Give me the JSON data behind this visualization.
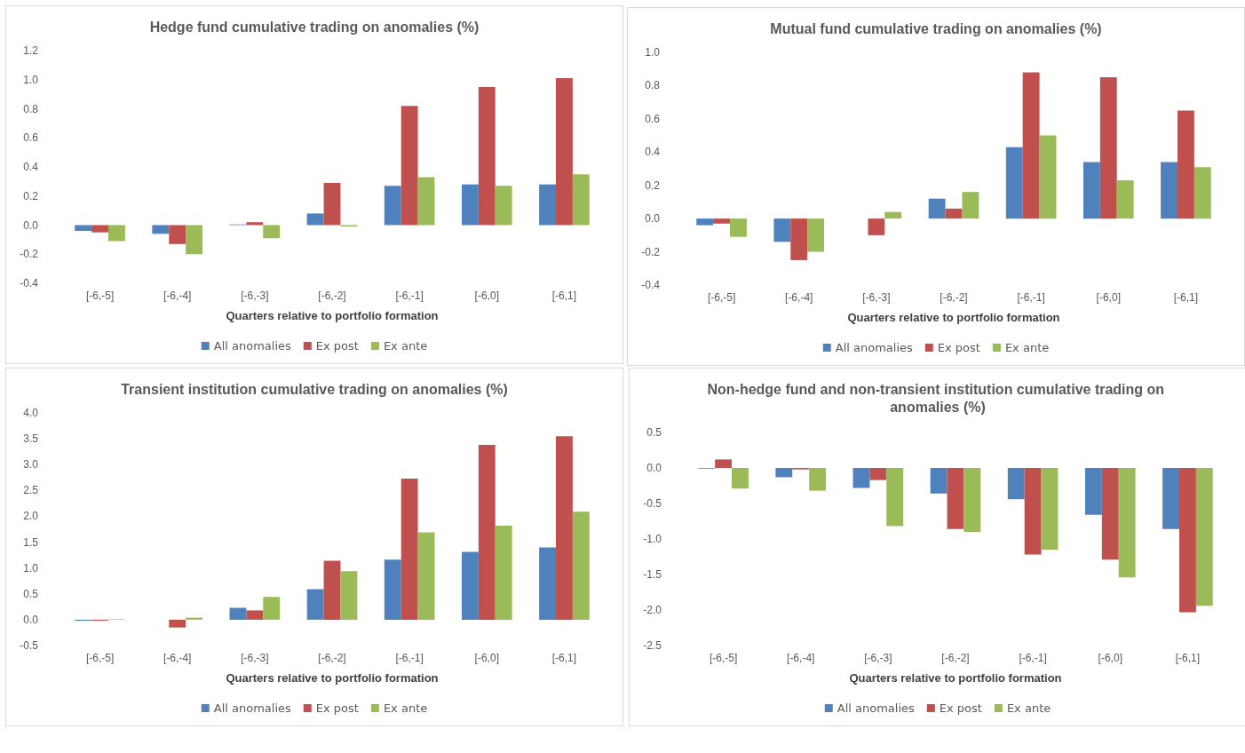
{
  "chart_data": [
    {
      "type": "bar",
      "title": "Hedge fund cumulative trading on anomalies (%)",
      "xlabel": "Quarters relative to portfolio formation",
      "categories": [
        "[-6,-5]",
        "[-6,-4]",
        "[-6,-3]",
        "[-6,-2]",
        "[-6,-1]",
        "[-6,0]",
        "[-6,1]"
      ],
      "series": [
        {
          "name": "All anomalies",
          "color": "#4f81bd",
          "values": [
            -0.04,
            -0.06,
            0.005,
            0.08,
            0.27,
            0.28,
            0.28
          ]
        },
        {
          "name": "Ex post",
          "color": "#c0504d",
          "values": [
            -0.05,
            -0.13,
            0.02,
            0.29,
            0.82,
            0.95,
            1.01
          ]
        },
        {
          "name": "Ex ante",
          "color": "#9bbb59",
          "values": [
            -0.11,
            -0.2,
            -0.09,
            -0.01,
            0.33,
            0.27,
            0.35
          ]
        }
      ],
      "ylim": [
        -0.4,
        1.2
      ],
      "yticks": [
        {
          "value": -0.4,
          "label": "-0.4"
        },
        {
          "value": -0.2,
          "label": "-0.2"
        },
        {
          "value": 0,
          "label": "0.0"
        },
        {
          "value": 0.2,
          "label": "0.2"
        },
        {
          "value": 0.4,
          "label": "0.4"
        },
        {
          "value": 0.6,
          "label": "0.6"
        },
        {
          "value": 0.8,
          "label": "0.8"
        },
        {
          "value": 1,
          "label": "1.0"
        },
        {
          "value": 1.2,
          "label": "1.2"
        }
      ],
      "legend": "bottom"
    },
    {
      "type": "bar",
      "title": "Mutual fund cumulative trading on anomalies (%)",
      "xlabel": "Quarters relative to portfolio formation",
      "categories": [
        "[-6,-5]",
        "[-6,-4]",
        "[-6,-3]",
        "[-6,-2]",
        "[-6,-1]",
        "[-6,0]",
        "[-6,1]"
      ],
      "series": [
        {
          "name": "All anomalies",
          "color": "#4f81bd",
          "values": [
            -0.04,
            -0.14,
            0,
            0.12,
            0.43,
            0.34,
            0.34
          ]
        },
        {
          "name": "Ex post",
          "color": "#c0504d",
          "values": [
            -0.03,
            -0.25,
            -0.1,
            0.06,
            0.88,
            0.85,
            0.65
          ]
        },
        {
          "name": "Ex ante",
          "color": "#9bbb59",
          "values": [
            -0.11,
            -0.2,
            0.04,
            0.16,
            0.5,
            0.23,
            0.31
          ]
        }
      ],
      "ylim": [
        -0.4,
        1.0
      ],
      "yticks": [
        {
          "value": -0.4,
          "label": "-0.4"
        },
        {
          "value": -0.2,
          "label": "-0.2"
        },
        {
          "value": 0,
          "label": "0.0"
        },
        {
          "value": 0.2,
          "label": "0.2"
        },
        {
          "value": 0.4,
          "label": "0.4"
        },
        {
          "value": 0.6,
          "label": "0.6"
        },
        {
          "value": 0.8,
          "label": "0.8"
        },
        {
          "value": 1,
          "label": "1.0"
        }
      ],
      "legend": "bottom"
    },
    {
      "type": "bar",
      "title": "Transient institution cumulative trading on anomalies (%)",
      "xlabel": "Quarters relative to portfolio formation",
      "categories": [
        "[-6,-5]",
        "[-6,-4]",
        "[-6,-3]",
        "[-6,-2]",
        "[-6,-1]",
        "[-6,0]",
        "[-6,1]"
      ],
      "series": [
        {
          "name": "All anomalies",
          "color": "#4f81bd",
          "values": [
            -0.02,
            null,
            0.23,
            0.59,
            1.16,
            1.31,
            1.4
          ]
        },
        {
          "name": "Ex post",
          "color": "#c0504d",
          "values": [
            -0.02,
            -0.15,
            0.18,
            1.14,
            2.73,
            3.38,
            3.55
          ]
        },
        {
          "name": "Ex ante",
          "color": "#9bbb59",
          "values": [
            0.01,
            0.04,
            0.44,
            0.94,
            1.69,
            1.82,
            2.09
          ]
        }
      ],
      "ylim": [
        -0.5,
        4.0
      ],
      "yticks": [
        {
          "value": -0.5,
          "label": "-0.5"
        },
        {
          "value": 0,
          "label": "0.0"
        },
        {
          "value": 0.5,
          "label": "0.5"
        },
        {
          "value": 1,
          "label": "1.0"
        },
        {
          "value": 1.5,
          "label": "1.5"
        },
        {
          "value": 2,
          "label": "2.0"
        },
        {
          "value": 2.5,
          "label": "2.5"
        },
        {
          "value": 3,
          "label": "3.0"
        },
        {
          "value": 3.5,
          "label": "3.5"
        },
        {
          "value": 4,
          "label": "4.0"
        }
      ],
      "legend": "bottom"
    },
    {
      "type": "bar",
      "title": "Non-hedge fund and non-transient institution cumulative trading on anomalies (%)",
      "xlabel": "Quarters relative to portfolio formation",
      "categories": [
        "[-6,-5]",
        "[-6,-4]",
        "[-6,-3]",
        "[-6,-2]",
        "[-6,-1]",
        "[-6,0]",
        "[-6,1]"
      ],
      "series": [
        {
          "name": "All anomalies",
          "color": "#4f81bd",
          "values": [
            -0.01,
            -0.13,
            -0.28,
            -0.36,
            -0.44,
            -0.66,
            -0.86
          ]
        },
        {
          "name": "Ex post",
          "color": "#c0504d",
          "values": [
            0.12,
            -0.02,
            -0.17,
            -0.86,
            -1.22,
            -1.29,
            -2.03
          ]
        },
        {
          "name": "Ex ante",
          "color": "#9bbb59",
          "values": [
            -0.29,
            -0.32,
            -0.82,
            -0.9,
            -1.15,
            -1.54,
            -1.94
          ]
        }
      ],
      "ylim": [
        -2.5,
        0.5
      ],
      "yticks": [
        {
          "value": -2.5,
          "label": "-2.5"
        },
        {
          "value": -2,
          "label": "-2.0"
        },
        {
          "value": -1.5,
          "label": "-1.5"
        },
        {
          "value": -1,
          "label": "-1.0"
        },
        {
          "value": -0.5,
          "label": "-0.5"
        },
        {
          "value": 0,
          "label": "0.0"
        },
        {
          "value": 0.5,
          "label": "0.5"
        }
      ],
      "legend": "bottom"
    }
  ]
}
